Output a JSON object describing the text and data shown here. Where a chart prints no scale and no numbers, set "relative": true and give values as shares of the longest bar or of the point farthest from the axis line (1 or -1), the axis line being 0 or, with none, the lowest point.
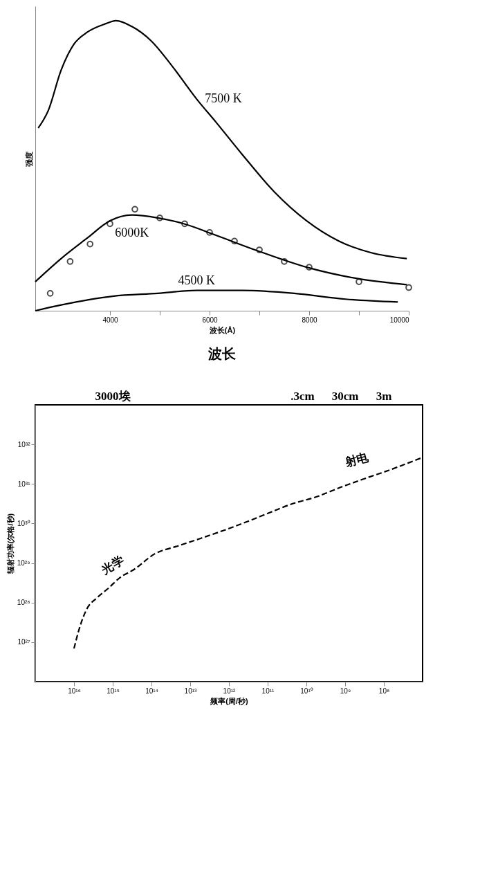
{
  "chart_data": [
    {
      "type": "line",
      "relative": true,
      "ylabel": "强度",
      "xlabel": "波长(Å)",
      "annotations": [
        "波长"
      ],
      "xlim": [
        2500,
        10000
      ],
      "xticks": [
        4000,
        {
          "value": 5000,
          "label": null
        },
        6000,
        {
          "value": 7000,
          "label": null
        },
        8000,
        {
          "value": 9000,
          "label": null
        },
        10000
      ],
      "series": [
        {
          "name": "7500 K",
          "color": "#000000",
          "x": [
            2560,
            2760,
            3020,
            3280,
            3540,
            3920,
            4120,
            4440,
            4830,
            5220,
            5740,
            6130,
            6650,
            7300,
            7950,
            8600,
            9250,
            9960
          ],
          "values": [
            0.63,
            0.69,
            0.83,
            0.92,
            0.96,
            0.99,
            1.0,
            0.98,
            0.93,
            0.85,
            0.73,
            0.65,
            0.54,
            0.41,
            0.31,
            0.24,
            0.2,
            0.18
          ]
        },
        {
          "name": "6000K",
          "color": "#000000",
          "x": [
            2500,
            3020,
            3540,
            4000,
            4440,
            4960,
            5480,
            6130,
            6910,
            7950,
            9000,
            9960
          ],
          "values": [
            0.1,
            0.18,
            0.25,
            0.31,
            0.33,
            0.32,
            0.3,
            0.26,
            0.21,
            0.15,
            0.11,
            0.09
          ]
        },
        {
          "name": "4500 K",
          "color": "#000000",
          "x": [
            2500,
            3020,
            4050,
            4960,
            5740,
            6650,
            7700,
            8730,
            9780
          ],
          "values": [
            0.0,
            0.02,
            0.05,
            0.06,
            0.07,
            0.07,
            0.06,
            0.04,
            0.03
          ]
        },
        {
          "type": "scatter",
          "marker": "circle",
          "color": "#000000",
          "x": [
            2800,
            3200,
            3600,
            4000,
            4500,
            5000,
            5500,
            6000,
            6500,
            7000,
            7500,
            8000,
            9000,
            10000
          ],
          "values": [
            0.06,
            0.17,
            0.23,
            0.3,
            0.35,
            0.32,
            0.3,
            0.27,
            0.24,
            0.21,
            0.17,
            0.15,
            0.1,
            0.08
          ]
        }
      ]
    },
    {
      "type": "line",
      "log": "xy",
      "xlabel": "频率(周/秒)",
      "ylabel": "辐射功率(尔格/秒)",
      "xlim": [
        1e+17,
        10000000.0
      ],
      "ylim": [
        1e+26,
        1e+33
      ],
      "line_style": "dashed",
      "xticks": [
        {
          "value": 1e+16,
          "label": "10¹⁶"
        },
        {
          "value": 1000000000000000.0,
          "label": "10¹⁵"
        },
        {
          "value": 100000000000000.0,
          "label": "10¹⁴"
        },
        {
          "value": 10000000000000.0,
          "label": "10¹³"
        },
        {
          "value": 1000000000000.0,
          "label": "10¹²"
        },
        {
          "value": 100000000000.0,
          "label": "10¹¹"
        },
        {
          "value": 10000000000.0,
          "label": "10¹⁰"
        },
        {
          "value": 1000000000.0,
          "label": "10⁹"
        },
        {
          "value": 100000000.0,
          "label": "10⁸"
        }
      ],
      "yticks": [
        {
          "value": 1e+27,
          "label": "10²⁷"
        },
        {
          "value": 1e+28,
          "label": "10²⁸"
        },
        {
          "value": 1e+29,
          "label": "10²⁹"
        },
        {
          "value": 1e+30,
          "label": "10³⁰"
        },
        {
          "value": 1e+31,
          "label": "10³¹"
        },
        {
          "value": 1e+32,
          "label": "10³²"
        }
      ],
      "annotations": [
        "光学",
        "射电",
        "3000埃",
        ".3cm",
        "30cm",
        "3m"
      ],
      "series": [
        {
          "color": "#000000",
          "x": [
            1e+16,
            7400000000000000.0,
            4700000000000000.0,
            2600000000000000.0,
            1300000000000000.0,
            650000000000000.0,
            280000000000000.0,
            83000000000000.0,
            21000000000000.0,
            5400000000000.0,
            1300000000000.0,
            350000000000.0,
            87000000000.0,
            22000000000.0,
            5600000000.0,
            1200000000.0,
            360000000.0,
            76000000.0,
            10500000.0
          ],
          "values": [
            6.9e+26,
            2.1e+27,
            6.8e+27,
            1.3e+28,
            2.3e+28,
            4.3e+28,
            6.9e+28,
            1.7e+29,
            2.7e+29,
            4.2e+29,
            6.8e+29,
            1.1e+30,
            1.9e+30,
            3.2e+30,
            4.7e+30,
            8.5e+30,
            1.3e+31,
            2.2e+31,
            4.6e+31
          ]
        }
      ]
    }
  ]
}
